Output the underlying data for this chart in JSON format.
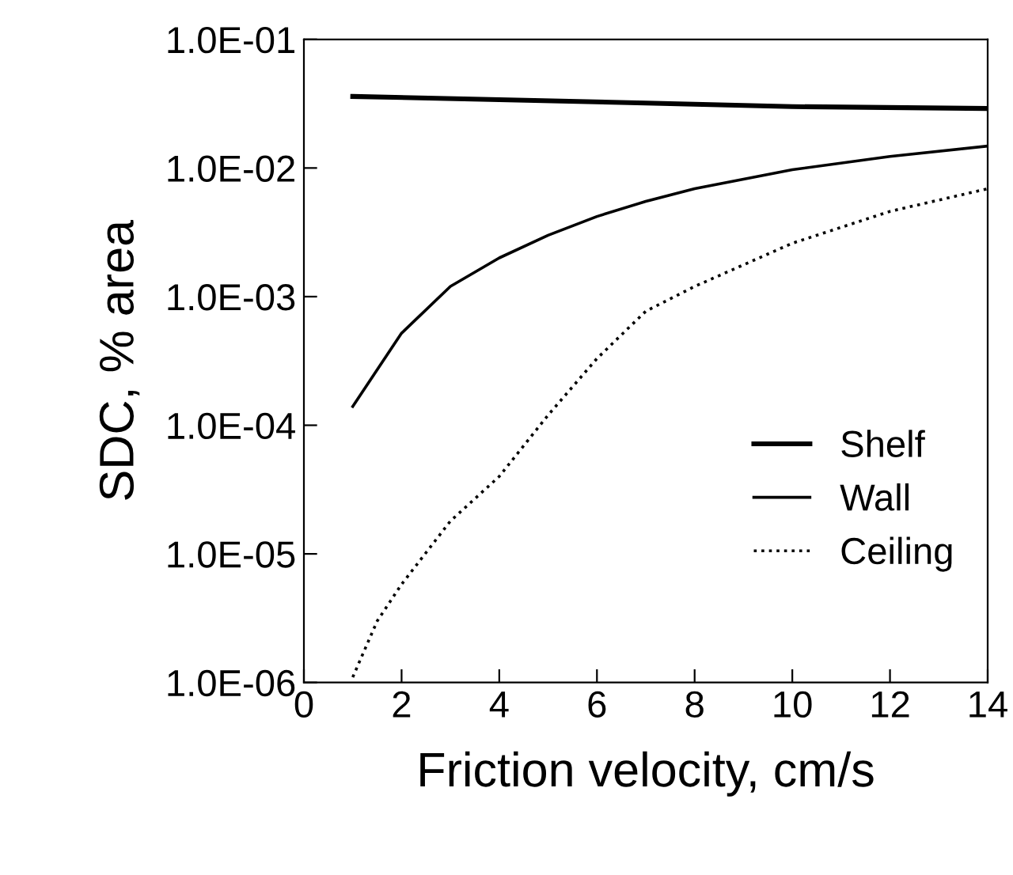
{
  "chart_data": {
    "type": "line",
    "xlabel": "Friction velocity, cm/s",
    "ylabel": "SDC, % area",
    "log": "y",
    "grid": false,
    "legend": "bottom right",
    "marker": "none",
    "xlim": [
      0,
      14
    ],
    "xticks": [
      0,
      2,
      4,
      6,
      8,
      10,
      12,
      14
    ],
    "ylim": [
      1e-06,
      0.1
    ],
    "yticks": [
      {
        "value": 1e-06,
        "label": "1.0E-06"
      },
      {
        "value": 1e-05,
        "label": "1.0E-05"
      },
      {
        "value": 0.0001,
        "label": "1.0E-04"
      },
      {
        "value": 0.001,
        "label": "1.0E-03"
      },
      {
        "value": 0.01,
        "label": "1.0E-02"
      },
      {
        "value": 0.1,
        "label": "1.0E-01"
      }
    ],
    "series": [
      {
        "name": "Shelf",
        "color": "#000000",
        "line_style": "solid",
        "x": [
          1,
          4,
          7,
          10,
          14
        ],
        "values": [
          0.036,
          0.034,
          0.032,
          0.03,
          0.029
        ]
      },
      {
        "name": "Wall",
        "color": "#000000",
        "line_style": "solid",
        "x": [
          1,
          2,
          3,
          4,
          5,
          6,
          7,
          8,
          10,
          12,
          14
        ],
        "values": [
          0.00014,
          0.00052,
          0.0012,
          0.002,
          0.003,
          0.0042,
          0.0055,
          0.0069,
          0.0097,
          0.0123,
          0.0148
        ]
      },
      {
        "name": "Ceiling",
        "color": "#000000",
        "line_style": "dotted",
        "x": [
          1,
          1.5,
          2,
          3,
          4,
          5,
          6,
          7,
          8,
          10,
          12,
          14
        ],
        "values": [
          1.1e-06,
          3e-06,
          5.8e-06,
          1.8e-05,
          4e-05,
          0.00012,
          0.00033,
          0.00077,
          0.0012,
          0.0026,
          0.0046,
          0.0069
        ]
      }
    ]
  }
}
